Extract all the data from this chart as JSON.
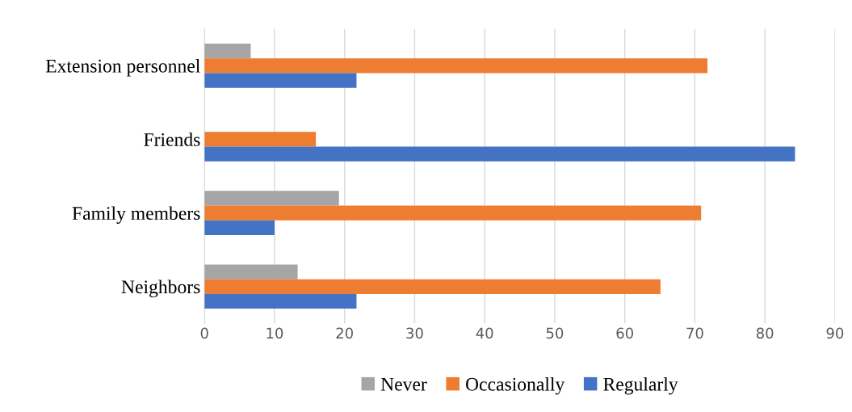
{
  "chart_data": {
    "type": "bar",
    "orientation": "horizontal",
    "categories": [
      "Extension personnel",
      "Friends",
      "Family members",
      "Neighbors"
    ],
    "series": [
      {
        "name": "Never",
        "color": "#a5a5a5",
        "values": [
          6.6,
          0,
          19.2,
          13.3
        ]
      },
      {
        "name": "Occasionally",
        "color": "#ed7d31",
        "values": [
          71.8,
          15.9,
          70.9,
          65.1
        ]
      },
      {
        "name": "Regularly",
        "color": "#4472c4",
        "values": [
          21.7,
          84.3,
          10.0,
          21.7
        ]
      }
    ],
    "xlim": [
      0,
      90
    ],
    "xticks": [
      0,
      10,
      20,
      30,
      40,
      50,
      60,
      70,
      80,
      90
    ],
    "grid": "x",
    "legend": "bottom"
  }
}
